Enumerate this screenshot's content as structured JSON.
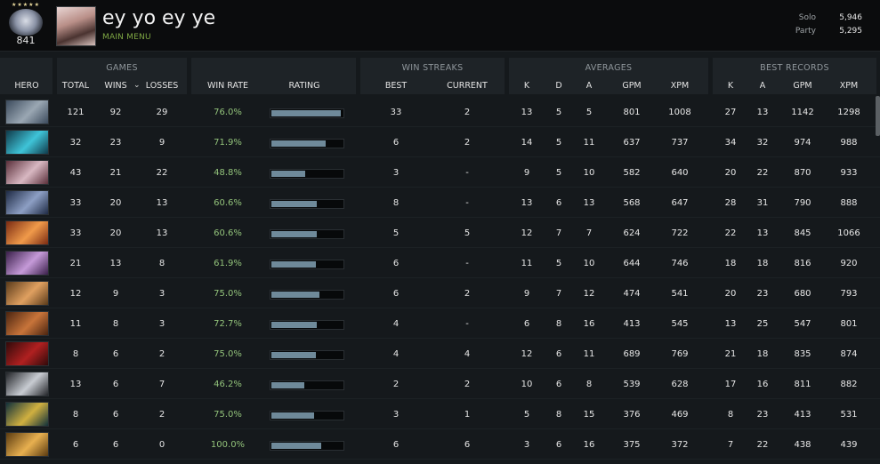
{
  "player": {
    "rank_stars": "★★★★★",
    "rank_number": "841",
    "username": "ey yo ey ye",
    "menu_link": "MAIN MENU",
    "mmr": [
      {
        "label": "Solo",
        "value": "5,946"
      },
      {
        "label": "Party",
        "value": "5,295"
      }
    ]
  },
  "groups": {
    "games": "GAMES",
    "win_streaks": "WIN STREAKS",
    "averages": "AVERAGES",
    "best_records": "BEST RECORDS"
  },
  "columns": {
    "hero": "HERO",
    "total": "TOTAL",
    "wins": "WINS",
    "losses": "LOSSES",
    "win_rate": "WIN RATE",
    "rating": "RATING",
    "best": "BEST",
    "current": "CURRENT",
    "avg_k": "K",
    "avg_d": "D",
    "avg_a": "A",
    "avg_gpm": "GPM",
    "avg_xpm": "XPM",
    "best_k": "K",
    "best_a": "A",
    "best_gpm": "GPM",
    "best_xpm": "XPM"
  },
  "sort_indicator": "chevron-down",
  "rows": [
    {
      "hero_colors": [
        "#3b4a5c",
        "#9aa7b3"
      ],
      "total": "121",
      "wins": "92",
      "losses": "29",
      "win_rate": "76.0%",
      "rating": 0.97,
      "best": "33",
      "current": "2",
      "k": "13",
      "d": "5",
      "a": "5",
      "gpm": "801",
      "xpm": "1008",
      "bk": "27",
      "ba": "13",
      "bgpm": "1142",
      "bxpm": "1298"
    },
    {
      "hero_colors": [
        "#0f3a4a",
        "#3fc4d8"
      ],
      "total": "32",
      "wins": "23",
      "losses": "9",
      "win_rate": "71.9%",
      "rating": 0.76,
      "best": "6",
      "current": "2",
      "k": "14",
      "d": "5",
      "a": "11",
      "gpm": "637",
      "xpm": "737",
      "bk": "34",
      "ba": "32",
      "bgpm": "974",
      "bxpm": "988"
    },
    {
      "hero_colors": [
        "#5a2f3a",
        "#d8b8c2"
      ],
      "total": "43",
      "wins": "21",
      "losses": "22",
      "win_rate": "48.8%",
      "rating": 0.48,
      "best": "3",
      "current": "-",
      "k": "9",
      "d": "5",
      "a": "10",
      "gpm": "582",
      "xpm": "640",
      "bk": "20",
      "ba": "22",
      "bgpm": "870",
      "bxpm": "933"
    },
    {
      "hero_colors": [
        "#1e2a44",
        "#8d9fc4"
      ],
      "total": "33",
      "wins": "20",
      "losses": "13",
      "win_rate": "60.6%",
      "rating": 0.64,
      "best": "8",
      "current": "-",
      "k": "13",
      "d": "6",
      "a": "13",
      "gpm": "568",
      "xpm": "647",
      "bk": "28",
      "ba": "31",
      "bgpm": "790",
      "bxpm": "888"
    },
    {
      "hero_colors": [
        "#7a2a12",
        "#f09a4a"
      ],
      "total": "33",
      "wins": "20",
      "losses": "13",
      "win_rate": "60.6%",
      "rating": 0.64,
      "best": "5",
      "current": "5",
      "k": "12",
      "d": "7",
      "a": "7",
      "gpm": "624",
      "xpm": "722",
      "bk": "22",
      "ba": "13",
      "bgpm": "845",
      "bxpm": "1066"
    },
    {
      "hero_colors": [
        "#3a1f4a",
        "#c59ad8"
      ],
      "total": "21",
      "wins": "13",
      "losses": "8",
      "win_rate": "61.9%",
      "rating": 0.62,
      "best": "6",
      "current": "-",
      "k": "11",
      "d": "5",
      "a": "10",
      "gpm": "644",
      "xpm": "746",
      "bk": "18",
      "ba": "18",
      "bgpm": "816",
      "bxpm": "920"
    },
    {
      "hero_colors": [
        "#5a3a1a",
        "#e0a060"
      ],
      "total": "12",
      "wins": "9",
      "losses": "3",
      "win_rate": "75.0%",
      "rating": 0.67,
      "best": "6",
      "current": "2",
      "k": "9",
      "d": "7",
      "a": "12",
      "gpm": "474",
      "xpm": "541",
      "bk": "20",
      "ba": "23",
      "bgpm": "680",
      "bxpm": "793"
    },
    {
      "hero_colors": [
        "#4a2410",
        "#c8743a"
      ],
      "total": "11",
      "wins": "8",
      "losses": "3",
      "win_rate": "72.7%",
      "rating": 0.64,
      "best": "4",
      "current": "-",
      "k": "6",
      "d": "8",
      "a": "16",
      "gpm": "413",
      "xpm": "545",
      "bk": "13",
      "ba": "25",
      "bgpm": "547",
      "bxpm": "801"
    },
    {
      "hero_colors": [
        "#300a0a",
        "#b02020"
      ],
      "total": "8",
      "wins": "6",
      "losses": "2",
      "win_rate": "75.0%",
      "rating": 0.62,
      "best": "4",
      "current": "4",
      "k": "12",
      "d": "6",
      "a": "11",
      "gpm": "689",
      "xpm": "769",
      "bk": "21",
      "ba": "18",
      "bgpm": "835",
      "bxpm": "874"
    },
    {
      "hero_colors": [
        "#222428",
        "#c8ccd2"
      ],
      "total": "13",
      "wins": "6",
      "losses": "7",
      "win_rate": "46.2%",
      "rating": 0.46,
      "best": "2",
      "current": "2",
      "k": "10",
      "d": "6",
      "a": "8",
      "gpm": "539",
      "xpm": "628",
      "bk": "17",
      "ba": "16",
      "bgpm": "811",
      "bxpm": "882"
    },
    {
      "hero_colors": [
        "#10303a",
        "#d0b040"
      ],
      "total": "8",
      "wins": "6",
      "losses": "2",
      "win_rate": "75.0%",
      "rating": 0.6,
      "best": "3",
      "current": "1",
      "k": "5",
      "d": "8",
      "a": "15",
      "gpm": "376",
      "xpm": "469",
      "bk": "8",
      "ba": "23",
      "bgpm": "413",
      "bxpm": "531"
    },
    {
      "hero_colors": [
        "#5a3a10",
        "#e8b050"
      ],
      "total": "6",
      "wins": "6",
      "losses": "0",
      "win_rate": "100.0%",
      "rating": 0.7,
      "best": "6",
      "current": "6",
      "k": "3",
      "d": "6",
      "a": "16",
      "gpm": "375",
      "xpm": "372",
      "bk": "7",
      "ba": "22",
      "bgpm": "438",
      "bxpm": "439"
    }
  ]
}
